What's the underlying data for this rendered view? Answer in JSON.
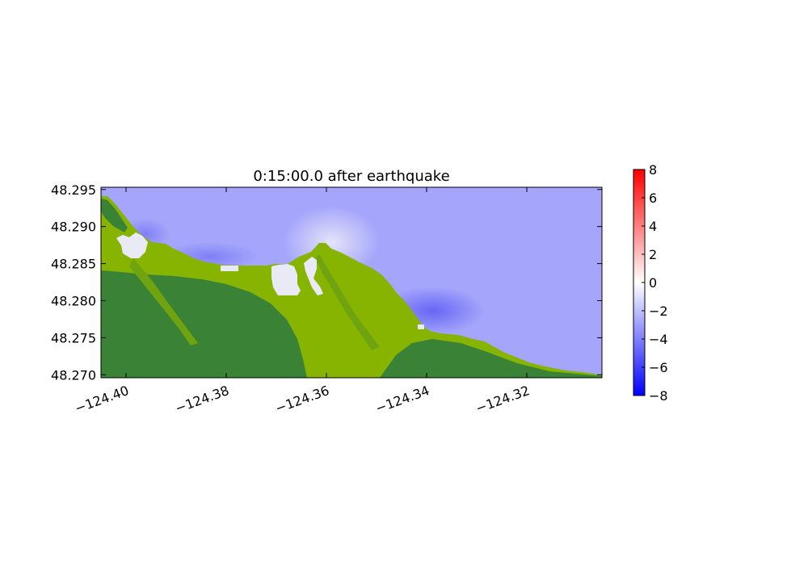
{
  "chart_data": {
    "type": "heatmap",
    "title": "0:15:00.0 after earthquake",
    "xlabel": "",
    "ylabel": "",
    "x_range": [
      -124.405,
      -124.305
    ],
    "y_range": [
      48.2696,
      48.2953
    ],
    "x_ticks": [
      -124.4,
      -124.38,
      -124.36,
      -124.34,
      -124.32
    ],
    "x_tick_labels": [
      "−124.40",
      "−124.38",
      "−124.36",
      "−124.34",
      "−124.32"
    ],
    "y_ticks": [
      48.27,
      48.275,
      48.28,
      48.285,
      48.29,
      48.295
    ],
    "y_tick_labels": [
      "48.270",
      "48.275",
      "48.280",
      "48.285",
      "48.290",
      "48.295"
    ],
    "colorbar": {
      "range": [
        -8,
        8
      ],
      "ticks": [
        8,
        6,
        4,
        2,
        0,
        -2,
        -4,
        -6,
        -8
      ],
      "tick_labels": [
        "8",
        "6",
        "4",
        "2",
        "0",
        "−2",
        "−4",
        "−6",
        "−8"
      ],
      "colormap": [
        "#0000ff",
        "#ffffff",
        "#ff0000"
      ]
    },
    "surface_value_typical": -3.5,
    "surface_value_min": -5.5,
    "surface_value_max": -0.5,
    "land_colors": [
      "#86b400",
      "#3a8236"
    ],
    "dry_color": "#eaeaf6",
    "grid": false
  }
}
